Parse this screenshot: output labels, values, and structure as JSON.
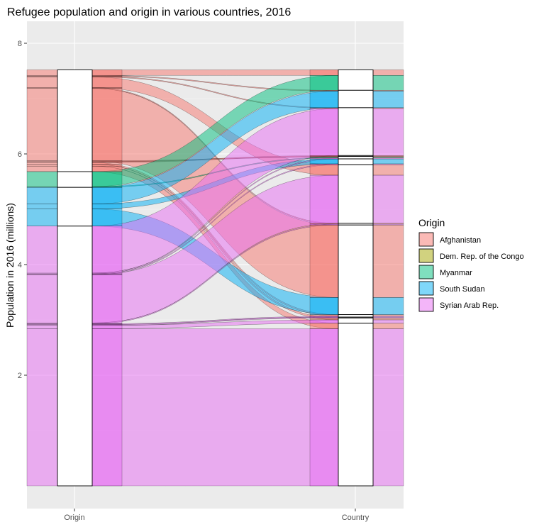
{
  "chart_data": {
    "type": "alluvial",
    "title": "Refugee population and origin in various countries, 2016",
    "xlabel": "",
    "ylabel": "Population in 2016 (millions)",
    "axes": [
      "Origin",
      "Country"
    ],
    "ylim": [
      0,
      8
    ],
    "yticks": [
      2,
      4,
      6,
      8
    ],
    "legend_title": "Origin",
    "legend_position": "right",
    "grid": true,
    "series": [
      {
        "name": "Afghanistan",
        "color": "#F8766D"
      },
      {
        "name": "Dem. Rep. of the Congo",
        "color": "#A3A500"
      },
      {
        "name": "Myanmar",
        "color": "#00BF7D"
      },
      {
        "name": "South Sudan",
        "color": "#00B0F6"
      },
      {
        "name": "Syrian Arab Rep.",
        "color": "#E76BF3"
      }
    ],
    "flows": [
      {
        "origin": "Afghanistan",
        "dest": 0,
        "value": 0.1
      },
      {
        "origin": "Afghanistan",
        "dest": 1,
        "value": 0.015
      },
      {
        "origin": "Afghanistan",
        "dest": 2,
        "value": 0.015
      },
      {
        "origin": "Afghanistan",
        "dest": 6,
        "value": 0.19
      },
      {
        "origin": "Afghanistan",
        "dest": 7,
        "value": 0.015
      },
      {
        "origin": "Afghanistan",
        "dest": 8,
        "value": 1.31
      },
      {
        "origin": "Afghanistan",
        "dest": 4,
        "value": 0.015
      },
      {
        "origin": "Afghanistan",
        "dest": 3,
        "value": 0.015
      },
      {
        "origin": "Afghanistan",
        "dest": 9,
        "value": 0.03
      },
      {
        "origin": "Afghanistan",
        "dest": 11,
        "value": 0.035
      },
      {
        "origin": "Afghanistan",
        "dest": 12,
        "value": 0.1
      },
      {
        "origin": "Myanmar",
        "dest": 0,
        "value": 0.27
      },
      {
        "origin": "Myanmar",
        "dest": 4,
        "value": 0.015
      },
      {
        "origin": "South Sudan",
        "dest": 1,
        "value": 0.3
      },
      {
        "origin": "South Sudan",
        "dest": 5,
        "value": 0.09
      },
      {
        "origin": "South Sudan",
        "dest": 8,
        "value": 0.31
      },
      {
        "origin": "Syrian Arab Rep.",
        "dest": 2,
        "value": 0.85
      },
      {
        "origin": "Syrian Arab Rep.",
        "dest": 4,
        "value": 0.015
      },
      {
        "origin": "Syrian Arab Rep.",
        "dest": 5,
        "value": 0.015
      },
      {
        "origin": "Syrian Arab Rep.",
        "dest": 6,
        "value": 0.87
      },
      {
        "origin": "Syrian Arab Rep.",
        "dest": 7,
        "value": 0.015
      },
      {
        "origin": "Syrian Arab Rep.",
        "dest": 9,
        "value": 0.015
      },
      {
        "origin": "Syrian Arab Rep.",
        "dest": 10,
        "value": 0.015
      },
      {
        "origin": "Syrian Arab Rep.",
        "dest": 11,
        "value": 0.06
      },
      {
        "origin": "Syrian Arab Rep.",
        "dest": 12,
        "value": 2.84
      }
    ]
  }
}
